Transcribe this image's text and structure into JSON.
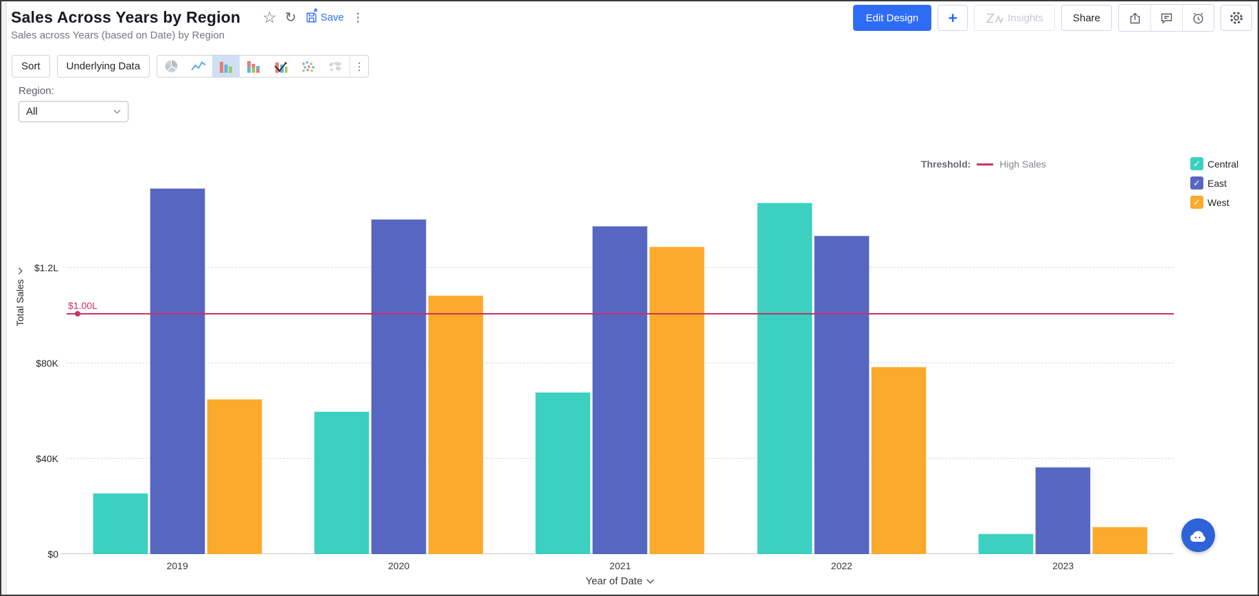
{
  "header": {
    "title": "Sales Across Years by Region",
    "subtitle": "Sales across Years (based on Date) by Region",
    "save_label": "Save",
    "buttons": {
      "edit_design": "Edit Design",
      "plus": "+",
      "insights": "Insights",
      "share": "Share"
    }
  },
  "toolbar": {
    "sort": "Sort",
    "underlying_data": "Underlying Data"
  },
  "filter": {
    "label": "Region:",
    "value": "All"
  },
  "legend": {
    "threshold_label": "Threshold:",
    "threshold_name": "High Sales",
    "check_glyph": "✓",
    "items": [
      {
        "label": "Central",
        "color": "#3bd0bf",
        "checked": true
      },
      {
        "label": "East",
        "color": "#5766c0",
        "checked": true
      },
      {
        "label": "West",
        "color": "#fbaa2c",
        "checked": true
      }
    ]
  },
  "chart_data": {
    "type": "bar",
    "title": "Sales Across Years by Region",
    "categories": [
      "2019",
      "2020",
      "2021",
      "2022",
      "2023"
    ],
    "series": [
      {
        "name": "Central",
        "color": "#3bd0bf",
        "values_k": [
          25.5,
          60,
          68,
          147.5,
          8.5
        ]
      },
      {
        "name": "East",
        "color": "#5766c0",
        "values_k": [
          153.5,
          140.5,
          137.5,
          133.5,
          36.5
        ]
      },
      {
        "name": "West",
        "color": "#fbaa2c",
        "values_k": [
          65,
          108.5,
          129,
          78.5,
          11.5
        ]
      }
    ],
    "xlabel": "Year of Date",
    "ylabel": "Total Sales",
    "yticks": [
      {
        "k": 0,
        "label": "$0"
      },
      {
        "k": 40,
        "label": "$40K"
      },
      {
        "k": 80,
        "label": "$80K"
      },
      {
        "k": 120,
        "label": "$1.2L"
      }
    ],
    "ylim_k": [
      0,
      167
    ],
    "threshold": {
      "name": "High Sales",
      "value_k": 100.4,
      "label": "$1.00L",
      "color": "#cb2e68"
    },
    "grid": "horizontal-dashed",
    "legend_position": "top-right"
  },
  "icons": {
    "star": "☆",
    "refresh": "↻",
    "kebab": "⋮",
    "save": "floppy-disk-with-asterisk",
    "zia": "zia-logo",
    "export": "box-arrow-up",
    "comment": "speech-bubble",
    "alarm": "alarm-clock",
    "gear": "settings-gear",
    "chart_types": [
      "pie-chart",
      "line-chart",
      "column-chart",
      "stacked-column-chart",
      "combo-chart",
      "scatter-chart",
      "map-chart"
    ],
    "chat": "assistant-cloud"
  },
  "colors": {
    "primary": "#2e6cf6",
    "threshold": "#cb2e68",
    "active_tool_bg": "#cfe0f5"
  }
}
